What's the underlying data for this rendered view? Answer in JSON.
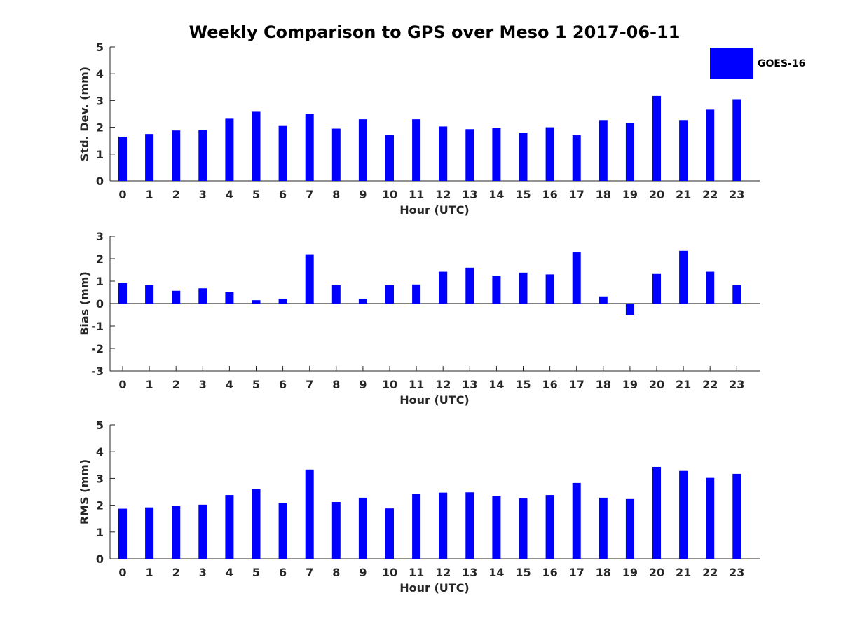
{
  "title": "Weekly Comparison to GPS over Meso 1 2017-06-11",
  "legend": {
    "label": "GOES-16",
    "color": "#0000ff"
  },
  "chart_data": [
    {
      "type": "bar",
      "title": "Weekly Comparison to GPS over Meso 1 2017-06-11",
      "xlabel": "Hour (UTC)",
      "ylabel": "Std. Dev. (mm)",
      "categories": [
        "0",
        "1",
        "2",
        "3",
        "4",
        "5",
        "6",
        "7",
        "8",
        "9",
        "10",
        "11",
        "12",
        "13",
        "14",
        "15",
        "16",
        "17",
        "18",
        "19",
        "20",
        "21",
        "22",
        "23"
      ],
      "yticks": [
        "0",
        "1",
        "2",
        "3",
        "4",
        "5"
      ],
      "ylim": [
        0,
        5
      ],
      "series": [
        {
          "name": "GOES-16",
          "values": [
            1.65,
            1.75,
            1.88,
            1.9,
            2.32,
            2.58,
            2.05,
            2.5,
            1.95,
            2.3,
            1.72,
            2.3,
            2.03,
            1.93,
            1.97,
            1.8,
            2.0,
            1.7,
            2.27,
            2.16,
            3.17,
            2.27,
            2.66,
            3.05
          ]
        }
      ]
    },
    {
      "type": "bar",
      "xlabel": "Hour (UTC)",
      "ylabel": "Bias (mm)",
      "categories": [
        "0",
        "1",
        "2",
        "3",
        "4",
        "5",
        "6",
        "7",
        "8",
        "9",
        "10",
        "11",
        "12",
        "13",
        "14",
        "15",
        "16",
        "17",
        "18",
        "19",
        "20",
        "21",
        "22",
        "23"
      ],
      "yticks": [
        "-3",
        "-2",
        "-1",
        "0",
        "1",
        "2",
        "3"
      ],
      "ylim": [
        -3,
        3
      ],
      "series": [
        {
          "name": "GOES-16",
          "values": [
            0.92,
            0.82,
            0.57,
            0.68,
            0.5,
            0.15,
            0.22,
            2.2,
            0.82,
            0.22,
            0.82,
            0.85,
            1.42,
            1.6,
            1.25,
            1.38,
            1.3,
            2.28,
            0.32,
            -0.5,
            1.32,
            2.35,
            1.42,
            0.82
          ]
        }
      ]
    },
    {
      "type": "bar",
      "xlabel": "Hour (UTC)",
      "ylabel": "RMS (mm)",
      "categories": [
        "0",
        "1",
        "2",
        "3",
        "4",
        "5",
        "6",
        "7",
        "8",
        "9",
        "10",
        "11",
        "12",
        "13",
        "14",
        "15",
        "16",
        "17",
        "18",
        "19",
        "20",
        "21",
        "22",
        "23"
      ],
      "yticks": [
        "0",
        "1",
        "2",
        "3",
        "4",
        "5"
      ],
      "ylim": [
        0,
        5
      ],
      "series": [
        {
          "name": "GOES-16",
          "values": [
            1.87,
            1.92,
            1.97,
            2.02,
            2.38,
            2.6,
            2.08,
            3.33,
            2.12,
            2.28,
            1.88,
            2.43,
            2.47,
            2.48,
            2.33,
            2.25,
            2.38,
            2.83,
            2.28,
            2.23,
            3.43,
            3.28,
            3.02,
            3.17
          ]
        }
      ]
    }
  ]
}
